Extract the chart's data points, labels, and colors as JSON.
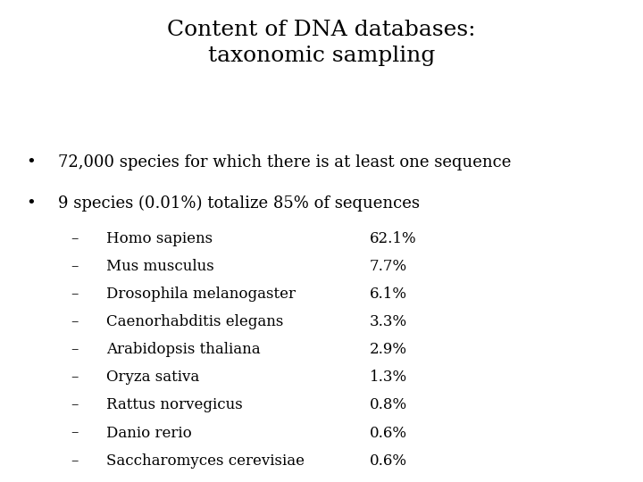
{
  "title_line1": "Content of DNA databases:",
  "title_line2": "taxonomic sampling",
  "bullet1": "72,000 species for which there is at least one sequence",
  "bullet2": "9 species (0.01%) totalize 85% of sequences",
  "species": [
    "Homo sapiens",
    "Mus musculus",
    "Drosophila melanogaster",
    "Caenorhabditis elegans",
    "Arabidopsis thaliana",
    "Oryza sativa",
    "Rattus norvegicus",
    "Danio rerio",
    "Saccharomyces cerevisiae"
  ],
  "percentages": [
    "62.1%",
    "7.7%",
    "6.1%",
    "3.3%",
    "2.9%",
    "1.3%",
    "0.8%",
    "0.6%",
    "0.6%"
  ],
  "bg_color": "#ffffff",
  "text_color": "#000000",
  "title_fontsize": 18,
  "bullet_fontsize": 13,
  "item_fontsize": 12
}
